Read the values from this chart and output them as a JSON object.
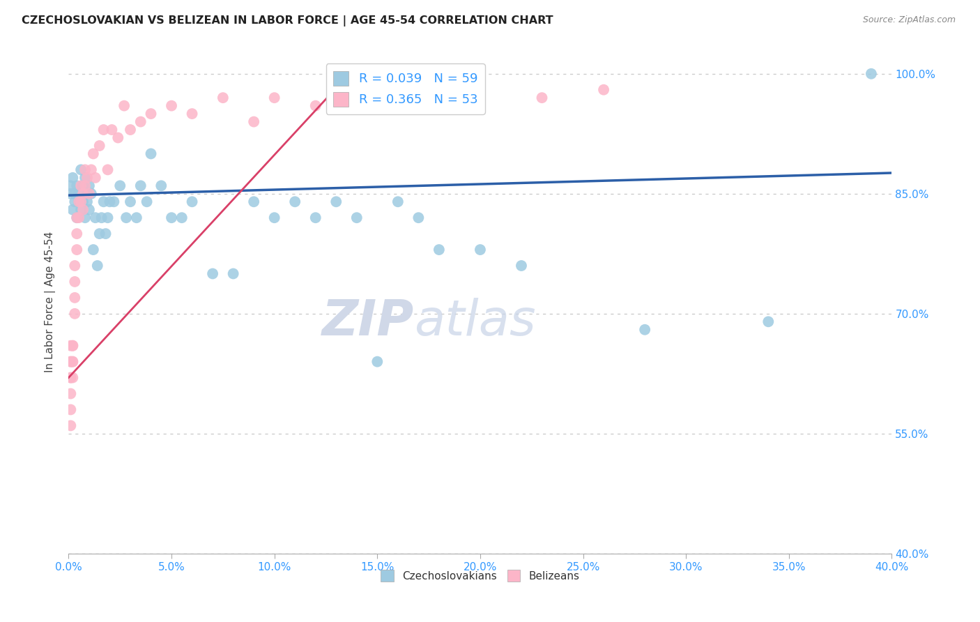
{
  "title": "CZECHOSLOVAKIAN VS BELIZEAN IN LABOR FORCE | AGE 45-54 CORRELATION CHART",
  "source": "Source: ZipAtlas.com",
  "ylabel": "In Labor Force | Age 45-54",
  "xlim": [
    0.0,
    0.4
  ],
  "ylim": [
    0.4,
    1.03
  ],
  "yticks": [
    0.4,
    0.55,
    0.7,
    0.85,
    1.0
  ],
  "xticks": [
    0.0,
    0.05,
    0.1,
    0.15,
    0.2,
    0.25,
    0.3,
    0.35,
    0.4
  ],
  "legend1_label": "R = 0.039   N = 59",
  "legend2_label": "R = 0.365   N = 53",
  "legend_xlabel": "Czechoslovakians",
  "legend_ylabel": "Belizeans",
  "blue_color": "#9ecae1",
  "pink_color": "#fcb5c8",
  "blue_line_color": "#2c5fa8",
  "pink_line_color": "#d94068",
  "watermark_zip": "ZIP",
  "watermark_atlas": "atlas",
  "czecho_x": [
    0.001,
    0.001,
    0.002,
    0.002,
    0.003,
    0.003,
    0.004,
    0.004,
    0.005,
    0.005,
    0.006,
    0.006,
    0.007,
    0.007,
    0.008,
    0.008,
    0.009,
    0.009,
    0.01,
    0.01,
    0.011,
    0.012,
    0.013,
    0.014,
    0.015,
    0.016,
    0.017,
    0.018,
    0.019,
    0.02,
    0.022,
    0.025,
    0.028,
    0.03,
    0.033,
    0.035,
    0.038,
    0.04,
    0.045,
    0.05,
    0.055,
    0.06,
    0.07,
    0.08,
    0.09,
    0.1,
    0.11,
    0.12,
    0.13,
    0.14,
    0.15,
    0.16,
    0.17,
    0.18,
    0.2,
    0.22,
    0.28,
    0.34,
    0.39
  ],
  "czecho_y": [
    0.85,
    0.86,
    0.83,
    0.87,
    0.85,
    0.84,
    0.82,
    0.86,
    0.84,
    0.85,
    0.83,
    0.88,
    0.86,
    0.84,
    0.82,
    0.87,
    0.85,
    0.84,
    0.83,
    0.86,
    0.85,
    0.78,
    0.82,
    0.76,
    0.8,
    0.82,
    0.84,
    0.8,
    0.82,
    0.84,
    0.84,
    0.86,
    0.82,
    0.84,
    0.82,
    0.86,
    0.84,
    0.9,
    0.86,
    0.82,
    0.82,
    0.84,
    0.75,
    0.75,
    0.84,
    0.82,
    0.84,
    0.82,
    0.84,
    0.82,
    0.64,
    0.84,
    0.82,
    0.78,
    0.78,
    0.76,
    0.68,
    0.69,
    1.0
  ],
  "beliz_x": [
    0.001,
    0.001,
    0.001,
    0.001,
    0.001,
    0.001,
    0.001,
    0.001,
    0.002,
    0.002,
    0.002,
    0.002,
    0.002,
    0.003,
    0.003,
    0.003,
    0.003,
    0.004,
    0.004,
    0.004,
    0.005,
    0.005,
    0.006,
    0.006,
    0.007,
    0.007,
    0.008,
    0.008,
    0.009,
    0.01,
    0.011,
    0.012,
    0.013,
    0.015,
    0.017,
    0.019,
    0.021,
    0.024,
    0.027,
    0.03,
    0.035,
    0.04,
    0.05,
    0.06,
    0.075,
    0.09,
    0.1,
    0.12,
    0.15,
    0.17,
    0.2,
    0.23,
    0.26
  ],
  "beliz_y": [
    0.62,
    0.64,
    0.58,
    0.56,
    0.6,
    0.62,
    0.64,
    0.66,
    0.64,
    0.66,
    0.62,
    0.64,
    0.66,
    0.7,
    0.72,
    0.74,
    0.76,
    0.78,
    0.8,
    0.82,
    0.82,
    0.84,
    0.84,
    0.86,
    0.83,
    0.85,
    0.86,
    0.88,
    0.87,
    0.85,
    0.88,
    0.9,
    0.87,
    0.91,
    0.93,
    0.88,
    0.93,
    0.92,
    0.96,
    0.93,
    0.94,
    0.95,
    0.96,
    0.95,
    0.97,
    0.94,
    0.97,
    0.96,
    0.98,
    0.97,
    0.98,
    0.97,
    0.98
  ]
}
